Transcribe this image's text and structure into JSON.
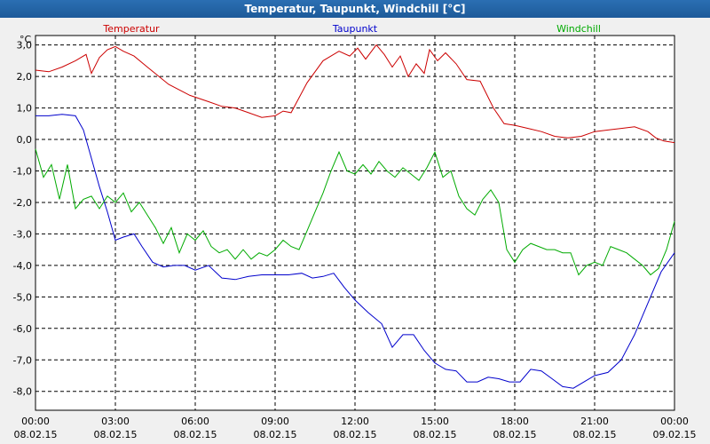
{
  "window": {
    "title": "Temperatur, Taupunkt, Windchill [°C]"
  },
  "chart_data": {
    "type": "line",
    "title": "Temperatur, Taupunkt, Windchill [°C]",
    "ylabel": "°C",
    "ylim": [
      -8.6,
      3.3
    ],
    "xlim": [
      0,
      24
    ],
    "grid": true,
    "y_ticks": [
      3,
      2,
      1,
      0,
      -1,
      -2,
      -3,
      -4,
      -5,
      -6,
      -7,
      -8
    ],
    "y_tick_labels": [
      "3,0",
      "2,0",
      "1,0",
      "0,0",
      "-1,0",
      "-2,0",
      "-3,0",
      "-4,0",
      "-5,0",
      "-6,0",
      "-7,0",
      "-8,0"
    ],
    "x_ticks": [
      {
        "hour": 0,
        "time": "00:00",
        "date": "08.02.15"
      },
      {
        "hour": 3,
        "time": "03:00",
        "date": "08.02.15"
      },
      {
        "hour": 6,
        "time": "06:00",
        "date": "08.02.15"
      },
      {
        "hour": 9,
        "time": "09:00",
        "date": "08.02.15"
      },
      {
        "hour": 12,
        "time": "12:00",
        "date": "08.02.15"
      },
      {
        "hour": 15,
        "time": "15:00",
        "date": "08.02.15"
      },
      {
        "hour": 18,
        "time": "18:00",
        "date": "08.02.15"
      },
      {
        "hour": 21,
        "time": "21:00",
        "date": "08.02.15"
      },
      {
        "hour": 24,
        "time": "00:00",
        "date": "09.02.15"
      }
    ],
    "series": [
      {
        "name": "Temperatur",
        "color": "#cc0000",
        "x": [
          0,
          0.5,
          1,
          1.5,
          1.9,
          2.1,
          2.4,
          2.7,
          3.0,
          3.3,
          3.7,
          4.2,
          5,
          5.8,
          6.5,
          7,
          7.5,
          8,
          8.5,
          9,
          9.3,
          9.6,
          10.2,
          10.8,
          11.4,
          11.8,
          12.1,
          12.4,
          12.8,
          13.1,
          13.4,
          13.7,
          14.0,
          14.3,
          14.6,
          14.8,
          15.1,
          15.4,
          15.8,
          16.2,
          16.7,
          17.2,
          17.6,
          18.0,
          18.5,
          19,
          19.5,
          20,
          20.5,
          21,
          21.5,
          22,
          22.5,
          23,
          23.3,
          23.6,
          24
        ],
        "y": [
          2.2,
          2.15,
          2.3,
          2.5,
          2.7,
          2.1,
          2.6,
          2.85,
          2.95,
          2.8,
          2.65,
          2.3,
          1.75,
          1.4,
          1.2,
          1.05,
          1.0,
          0.85,
          0.7,
          0.75,
          0.9,
          0.85,
          1.8,
          2.5,
          2.8,
          2.65,
          2.9,
          2.55,
          3.0,
          2.7,
          2.3,
          2.65,
          2.0,
          2.4,
          2.1,
          2.85,
          2.5,
          2.75,
          2.4,
          1.9,
          1.85,
          1.0,
          0.5,
          0.45,
          0.35,
          0.25,
          0.1,
          0.05,
          0.1,
          0.25,
          0.3,
          0.35,
          0.4,
          0.25,
          0.05,
          -0.05,
          -0.1
        ]
      },
      {
        "name": "Taupunkt",
        "color": "#0000cc",
        "x": [
          0,
          0.5,
          1,
          1.5,
          1.8,
          2.1,
          2.4,
          2.7,
          3.0,
          3.3,
          3.7,
          4.0,
          4.4,
          4.8,
          5.2,
          5.6,
          6.0,
          6.5,
          7.0,
          7.5,
          8.0,
          8.5,
          9.0,
          9.5,
          10.0,
          10.4,
          10.8,
          11.2,
          11.6,
          12.0,
          12.5,
          13.0,
          13.4,
          13.8,
          14.2,
          14.6,
          15.0,
          15.4,
          15.8,
          16.2,
          16.6,
          17.0,
          17.4,
          17.8,
          18.2,
          18.6,
          19.0,
          19.4,
          19.8,
          20.2,
          20.6,
          21.0,
          21.5,
          22.0,
          22.5,
          23.0,
          23.5,
          24.0
        ],
        "y": [
          0.75,
          0.75,
          0.8,
          0.75,
          0.3,
          -0.6,
          -1.5,
          -2.3,
          -3.2,
          -3.1,
          -3.0,
          -3.4,
          -3.9,
          -4.05,
          -4.0,
          -4.0,
          -4.15,
          -4.0,
          -4.4,
          -4.45,
          -4.35,
          -4.3,
          -4.3,
          -4.3,
          -4.25,
          -4.4,
          -4.35,
          -4.25,
          -4.7,
          -5.1,
          -5.5,
          -5.85,
          -6.6,
          -6.2,
          -6.2,
          -6.7,
          -7.1,
          -7.3,
          -7.35,
          -7.7,
          -7.7,
          -7.55,
          -7.6,
          -7.7,
          -7.7,
          -7.3,
          -7.35,
          -7.6,
          -7.85,
          -7.9,
          -7.7,
          -7.5,
          -7.4,
          -7.0,
          -6.2,
          -5.2,
          -4.2,
          -3.6
        ]
      },
      {
        "name": "Windchill",
        "color": "#00aa00",
        "x": [
          0,
          0.3,
          0.6,
          0.9,
          1.2,
          1.5,
          1.8,
          2.1,
          2.4,
          2.7,
          3.0,
          3.3,
          3.6,
          3.9,
          4.2,
          4.5,
          4.8,
          5.1,
          5.4,
          5.7,
          6.0,
          6.3,
          6.6,
          6.9,
          7.2,
          7.5,
          7.8,
          8.1,
          8.4,
          8.7,
          9.0,
          9.3,
          9.6,
          9.9,
          10.2,
          10.5,
          10.8,
          11.1,
          11.4,
          11.7,
          12.0,
          12.3,
          12.6,
          12.9,
          13.2,
          13.5,
          13.8,
          14.1,
          14.4,
          14.7,
          15.0,
          15.3,
          15.6,
          15.9,
          16.2,
          16.5,
          16.8,
          17.1,
          17.4,
          17.7,
          18.0,
          18.3,
          18.6,
          18.9,
          19.2,
          19.5,
          19.8,
          20.1,
          20.4,
          20.7,
          21.0,
          21.3,
          21.6,
          21.9,
          22.2,
          22.5,
          22.8,
          23.1,
          23.4,
          23.7,
          24.0
        ],
        "y": [
          -0.3,
          -1.2,
          -0.8,
          -1.9,
          -0.8,
          -2.2,
          -1.9,
          -1.8,
          -2.2,
          -1.8,
          -2.0,
          -1.7,
          -2.3,
          -2.0,
          -2.4,
          -2.8,
          -3.3,
          -2.8,
          -3.6,
          -3.0,
          -3.2,
          -2.9,
          -3.4,
          -3.6,
          -3.5,
          -3.8,
          -3.5,
          -3.8,
          -3.6,
          -3.7,
          -3.5,
          -3.2,
          -3.4,
          -3.5,
          -2.9,
          -2.3,
          -1.7,
          -1.0,
          -0.4,
          -1.0,
          -1.1,
          -0.8,
          -1.1,
          -0.7,
          -1.0,
          -1.2,
          -0.9,
          -1.1,
          -1.3,
          -0.9,
          -0.4,
          -1.2,
          -1.0,
          -1.8,
          -2.2,
          -2.4,
          -1.9,
          -1.6,
          -2.0,
          -3.5,
          -3.9,
          -3.5,
          -3.3,
          -3.4,
          -3.5,
          -3.5,
          -3.6,
          -3.6,
          -4.3,
          -4.0,
          -3.9,
          -4.0,
          -3.4,
          -3.5,
          -3.6,
          -3.8,
          -4.0,
          -4.3,
          -4.1,
          -3.5,
          -2.6
        ]
      }
    ]
  }
}
